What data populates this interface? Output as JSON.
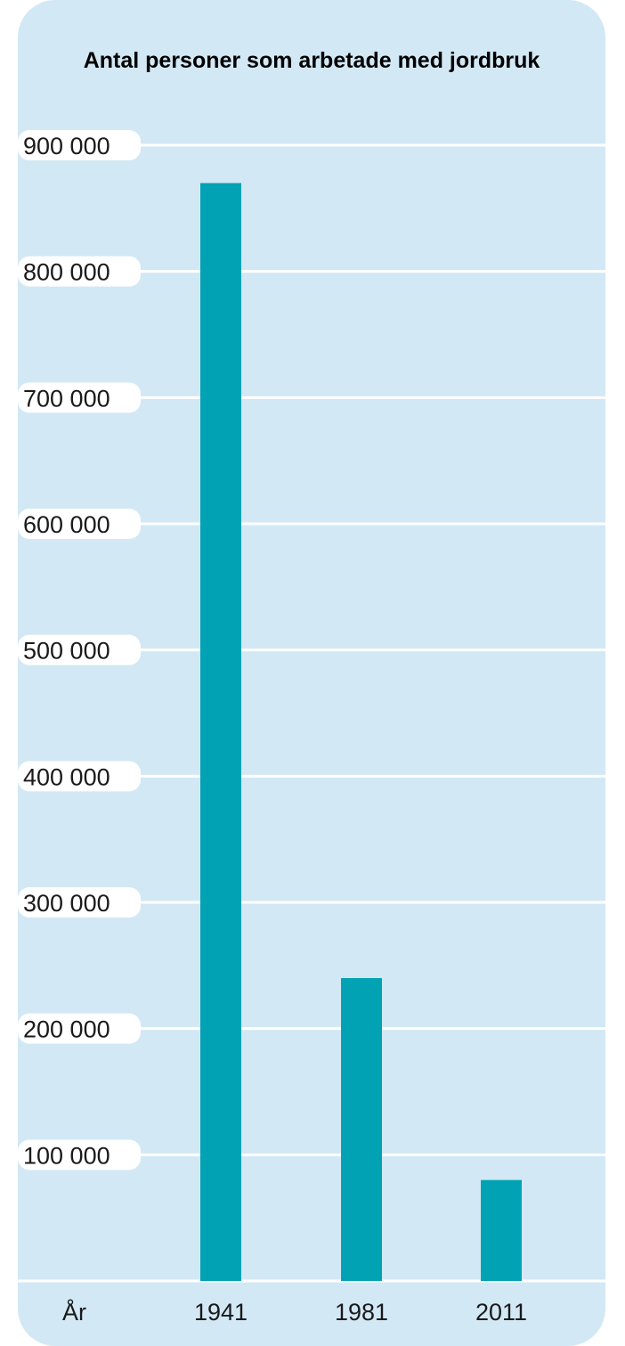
{
  "colors": {
    "panel_background": "#d2e8f5",
    "bar": "#00a2b4",
    "gridline": "#ffffff"
  },
  "chart_data": {
    "type": "bar",
    "title": "Antal personer som arbetade med jordbruk",
    "xlabel": "År",
    "ylabel": "",
    "categories": [
      "1941",
      "1981",
      "2011"
    ],
    "values": [
      870000,
      240000,
      80000
    ],
    "ylim": [
      0,
      900000
    ],
    "yticks": [
      100000,
      200000,
      300000,
      400000,
      500000,
      600000,
      700000,
      800000,
      900000
    ],
    "ytick_labels": [
      "100 000",
      "200 000",
      "300 000",
      "400 000",
      "500 000",
      "600 000",
      "700 000",
      "800 000",
      "900 000"
    ],
    "grid": true,
    "legend": "none"
  }
}
